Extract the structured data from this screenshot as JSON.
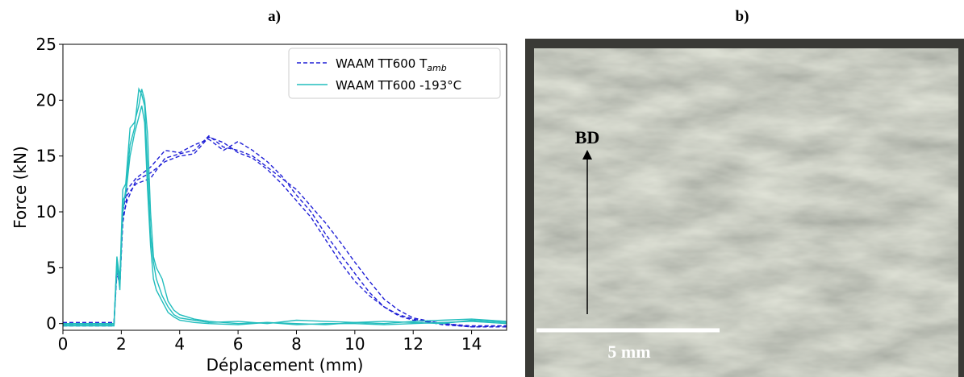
{
  "chart_data": {
    "type": "line",
    "title": "a)",
    "x_label": "Déplacement (mm)",
    "y_label": "Force (kN)",
    "xlim": [
      0,
      15.2
    ],
    "xticks": [
      0,
      2,
      4,
      6,
      8,
      10,
      12,
      14
    ],
    "ylim": [
      -0.6,
      25
    ],
    "yticks": [
      0,
      5,
      10,
      15,
      20,
      25
    ],
    "grid": false,
    "legend": "upper right",
    "series": [
      {
        "name": "WAAM TT600 T",
        "name_sub": "amb",
        "color": "#1f1fd6",
        "dash": true,
        "x": [
          0,
          1.75,
          1.85,
          1.95,
          2.05,
          2.2,
          2.5,
          3,
          3.5,
          4,
          4.5,
          5,
          5.5,
          6,
          6.5,
          7,
          7.5,
          8,
          8.5,
          9,
          9.5,
          10,
          10.5,
          11,
          11.5,
          12,
          13,
          14,
          15.2
        ],
        "curves": [
          [
            0,
            0,
            5,
            3.5,
            9,
            11.5,
            12.5,
            13,
            14.8,
            15.2,
            15.5,
            16.8,
            15.8,
            15.5,
            15,
            14,
            13,
            12,
            10.5,
            9,
            7.3,
            5.5,
            3.8,
            2.2,
            1.2,
            0.5,
            0,
            -0.2,
            -0.2
          ],
          [
            -0.2,
            -0.2,
            5.5,
            4,
            10,
            12,
            13,
            14,
            15.5,
            15.3,
            16,
            16.5,
            15.5,
            16.3,
            15.5,
            14.5,
            13.2,
            11.5,
            10,
            8,
            6.2,
            4.5,
            2.8,
            1.5,
            0.7,
            0.3,
            0,
            -0.3,
            -0.3
          ],
          [
            0.1,
            0.1,
            4.5,
            3.5,
            9.5,
            11,
            12.8,
            13.5,
            14.5,
            15,
            15.2,
            16.7,
            16.2,
            15.3,
            14.8,
            13.8,
            12.5,
            11,
            9.5,
            7.5,
            5.5,
            3.8,
            2.5,
            1.5,
            0.8,
            0.4,
            -0.1,
            -0.3,
            -0.2
          ]
        ]
      },
      {
        "name": "WAAM TT600 -193°C",
        "color": "#22bdbd",
        "dash": false,
        "x": [
          0,
          1.75,
          1.85,
          1.95,
          2.05,
          2.15,
          2.3,
          2.45,
          2.6,
          2.7,
          2.8,
          2.9,
          3.0,
          3.1,
          3.2,
          3.4,
          3.6,
          3.8,
          4,
          4.5,
          5,
          6,
          7,
          8,
          9,
          10,
          11,
          12,
          13,
          14,
          15.2
        ],
        "curves": [
          [
            -0.2,
            -0.2,
            6,
            4,
            12,
            12.5,
            17.5,
            18,
            19.5,
            21,
            20,
            17,
            10,
            6,
            5,
            4,
            2,
            1.2,
            0.8,
            0.4,
            0.2,
            0,
            0.1,
            -0.1,
            0,
            0,
            -0.1,
            0,
            0.1,
            0.2,
            0
          ],
          [
            0,
            0,
            5,
            3.5,
            10,
            12,
            16,
            17.5,
            21,
            20.5,
            19.5,
            14,
            8,
            5.5,
            4,
            2.5,
            1.5,
            0.8,
            0.5,
            0.3,
            0.1,
            0.2,
            0,
            0.3,
            0.2,
            0.1,
            0,
            0.2,
            0.3,
            0.4,
            0.2
          ],
          [
            -0.1,
            -0.1,
            5.5,
            3,
            11,
            11.5,
            15,
            17,
            18.5,
            19.5,
            18,
            12,
            7,
            4,
            3,
            2,
            1,
            0.6,
            0.3,
            0.1,
            0,
            -0.1,
            0.1,
            0,
            -0.1,
            0.1,
            0.2,
            0.1,
            0,
            0.3,
            0.1
          ]
        ]
      }
    ]
  },
  "photo": {
    "panel_label": "b)",
    "direction_label": "BD",
    "scale_bar_label": "5 mm"
  }
}
